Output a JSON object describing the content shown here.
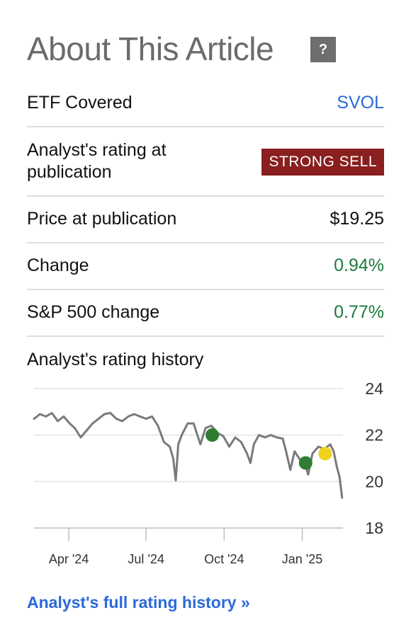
{
  "header": {
    "title": "About This Article",
    "help_label": "?"
  },
  "rows": {
    "etf": {
      "label": "ETF Covered",
      "value": "SVOL"
    },
    "rating": {
      "label": "Analyst's rating at publication",
      "value": "STRONG SELL",
      "badge_color": "#8a1f1f"
    },
    "price": {
      "label": "Price at publication",
      "value": "$19.25"
    },
    "change": {
      "label": "Change",
      "value": "0.94%"
    },
    "sp500": {
      "label": "S&P 500 change",
      "value": "0.77%"
    }
  },
  "history": {
    "title": "Analyst's rating history",
    "link_text": "Analyst's full rating history »"
  },
  "colors": {
    "link": "#2a6ad9",
    "positive": "#1c7a3c",
    "line": "#7a7a7a",
    "marker_buy": "#2e7d32",
    "marker_hold": "#f0d21e"
  },
  "chart_data": {
    "type": "line",
    "ylim": [
      18,
      24
    ],
    "yticks": [
      "24",
      "22",
      "20",
      "18"
    ],
    "xlim": [
      "2024-02-20",
      "2025-02-18"
    ],
    "xticks": [
      {
        "label": "Apr '24",
        "date": "2024-04-01"
      },
      {
        "label": "Jul '24",
        "date": "2024-07-01"
      },
      {
        "label": "Oct '24",
        "date": "2024-10-01"
      },
      {
        "label": "Jan '25",
        "date": "2025-01-01"
      }
    ],
    "series": [
      {
        "points": [
          [
            "2024-02-20",
            22.7
          ],
          [
            "2024-02-27",
            22.9
          ],
          [
            "2024-03-05",
            22.8
          ],
          [
            "2024-03-12",
            22.95
          ],
          [
            "2024-03-19",
            22.6
          ],
          [
            "2024-03-26",
            22.8
          ],
          [
            "2024-04-02",
            22.5
          ],
          [
            "2024-04-08",
            22.3
          ],
          [
            "2024-04-15",
            21.9
          ],
          [
            "2024-04-22",
            22.2
          ],
          [
            "2024-04-29",
            22.5
          ],
          [
            "2024-05-06",
            22.7
          ],
          [
            "2024-05-13",
            22.9
          ],
          [
            "2024-05-20",
            22.95
          ],
          [
            "2024-05-27",
            22.7
          ],
          [
            "2024-06-03",
            22.6
          ],
          [
            "2024-06-10",
            22.8
          ],
          [
            "2024-06-17",
            22.9
          ],
          [
            "2024-06-24",
            22.8
          ],
          [
            "2024-07-01",
            22.7
          ],
          [
            "2024-07-08",
            22.8
          ],
          [
            "2024-07-15",
            22.4
          ],
          [
            "2024-07-22",
            21.7
          ],
          [
            "2024-07-29",
            21.5
          ],
          [
            "2024-08-02",
            21.0
          ],
          [
            "2024-08-05",
            20.05
          ],
          [
            "2024-08-08",
            21.6
          ],
          [
            "2024-08-12",
            22.0
          ],
          [
            "2024-08-19",
            22.5
          ],
          [
            "2024-08-26",
            22.5
          ],
          [
            "2024-09-03",
            21.6
          ],
          [
            "2024-09-09",
            22.3
          ],
          [
            "2024-09-16",
            22.4
          ],
          [
            "2024-09-23",
            22.1
          ],
          [
            "2024-09-30",
            21.95
          ],
          [
            "2024-10-07",
            21.5
          ],
          [
            "2024-10-14",
            21.9
          ],
          [
            "2024-10-21",
            21.7
          ],
          [
            "2024-10-28",
            21.2
          ],
          [
            "2024-11-01",
            20.8
          ],
          [
            "2024-11-05",
            21.6
          ],
          [
            "2024-11-11",
            22.0
          ],
          [
            "2024-11-18",
            21.9
          ],
          [
            "2024-11-25",
            22.0
          ],
          [
            "2024-12-02",
            21.9
          ],
          [
            "2024-12-09",
            21.85
          ],
          [
            "2024-12-13",
            21.3
          ],
          [
            "2024-12-18",
            20.5
          ],
          [
            "2024-12-23",
            21.3
          ],
          [
            "2024-12-30",
            20.9
          ],
          [
            "2025-01-03",
            20.9
          ],
          [
            "2025-01-08",
            20.3
          ],
          [
            "2025-01-13",
            21.2
          ],
          [
            "2025-01-20",
            21.5
          ],
          [
            "2025-01-27",
            21.4
          ],
          [
            "2025-02-03",
            21.6
          ],
          [
            "2025-02-07",
            21.3
          ],
          [
            "2025-02-11",
            20.6
          ],
          [
            "2025-02-14",
            20.2
          ],
          [
            "2025-02-17",
            19.3
          ]
        ]
      }
    ],
    "markers": [
      {
        "date": "2024-09-17",
        "value": 22.0,
        "color": "#2e7d32"
      },
      {
        "date": "2025-01-05",
        "value": 20.8,
        "color": "#2e7d32"
      },
      {
        "date": "2025-01-28",
        "value": 21.2,
        "color": "#f0d21e"
      }
    ]
  }
}
